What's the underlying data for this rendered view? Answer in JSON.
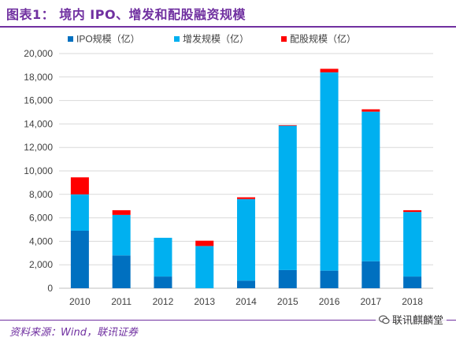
{
  "header": {
    "title": "图表1：  境内 IPO、增发和配股融资规模"
  },
  "footer": {
    "source": "资料来源：Wind，联讯证券",
    "watermark": "联讯麒麟堂"
  },
  "colors": {
    "ipo": "#0070c0",
    "additional": "#00b0f0",
    "rights": "#ff0000",
    "title": "#7030a0",
    "gridline": "#d9d9d9",
    "axis": "#bfbfbf",
    "text": "#404040"
  },
  "chart_data": {
    "type": "bar",
    "stacked": true,
    "title": "",
    "xlabel": "",
    "ylabel": "",
    "categories": [
      "2010",
      "2011",
      "2012",
      "2013",
      "2014",
      "2015",
      "2016",
      "2017",
      "2018"
    ],
    "series": [
      {
        "name": "IPO规模（亿）",
        "color": "#0070c0",
        "values": [
          4900,
          2800,
          1000,
          0,
          650,
          1550,
          1500,
          2300,
          1000
        ]
      },
      {
        "name": "增发规模（亿）",
        "color": "#00b0f0",
        "values": [
          3100,
          3450,
          3300,
          3600,
          6950,
          12300,
          16900,
          12750,
          5500
        ]
      },
      {
        "name": "配股规模（亿）",
        "color": "#ff0000",
        "values": [
          1450,
          400,
          0,
          450,
          150,
          50,
          300,
          200,
          150
        ]
      }
    ],
    "ylim": [
      0,
      20000
    ],
    "yticks": [
      "0",
      "2,000",
      "4,000",
      "6,000",
      "8,000",
      "10,000",
      "12,000",
      "14,000",
      "16,000",
      "18,000",
      "20,000"
    ],
    "grid": true,
    "legend": "top-left"
  }
}
